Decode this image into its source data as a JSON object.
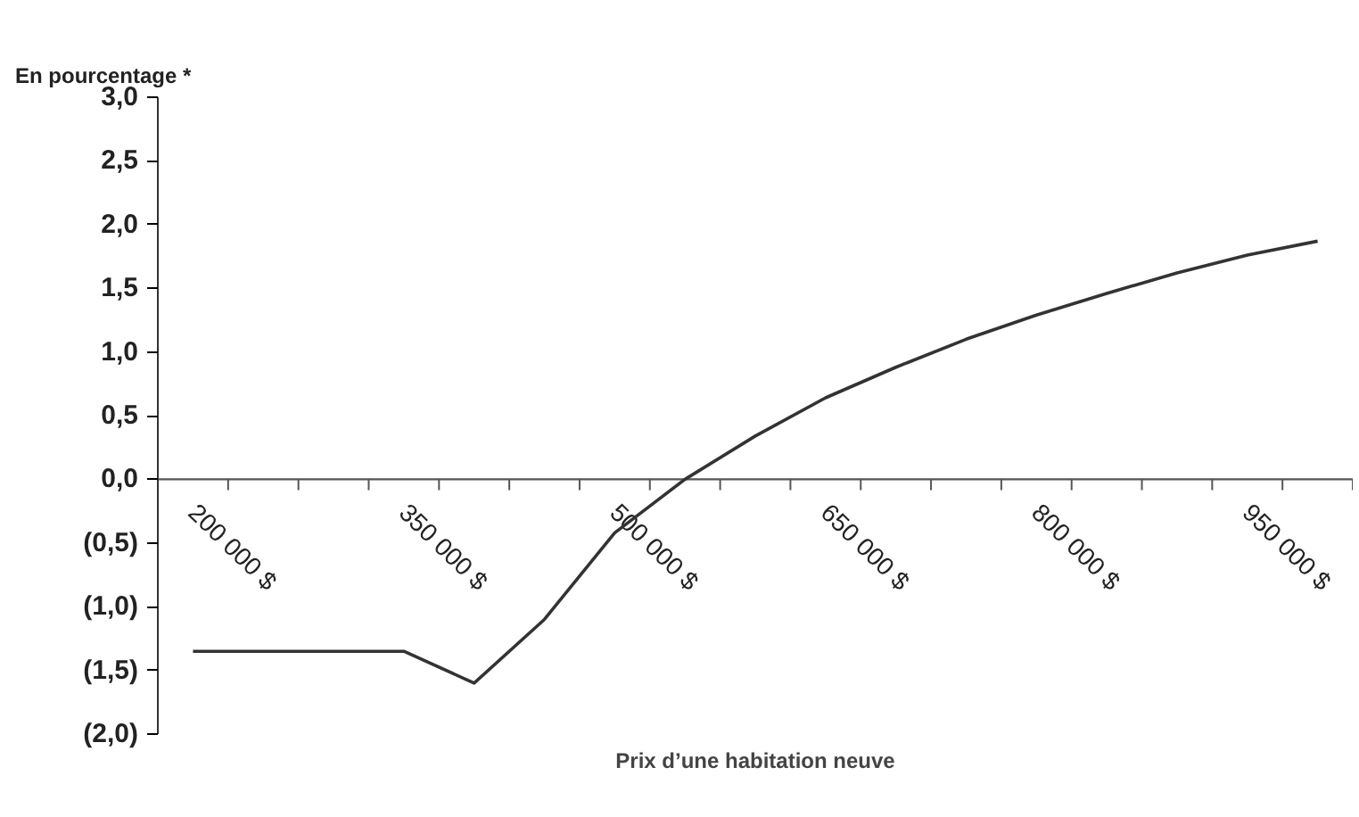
{
  "chart_data": {
    "type": "line",
    "title": "En pourcentage *",
    "xlabel": "Prix d’une habitation neuve",
    "categories": [
      "200 000 $",
      null,
      null,
      "350 000 $",
      null,
      null,
      "500 000 $",
      null,
      null,
      "650 000 $",
      null,
      null,
      "800 000 $",
      null,
      null,
      "950 000 $",
      null
    ],
    "values": [
      -1.35,
      -1.35,
      -1.35,
      -1.35,
      -1.6,
      -1.1,
      -0.42,
      0.0,
      0.34,
      0.64,
      0.88,
      1.1,
      1.29,
      1.46,
      1.62,
      1.76,
      1.87
    ],
    "color": "#333333",
    "ylim": [
      -2.0,
      3.0
    ],
    "yticks": [
      {
        "value": -2.0,
        "label": "(2,0)"
      },
      {
        "value": -1.5,
        "label": "(1,5)"
      },
      {
        "value": -1.0,
        "label": "(1,0)"
      },
      {
        "value": -0.5,
        "label": "(0,5)"
      },
      {
        "value": 0.0,
        "label": "0,0"
      },
      {
        "value": 0.5,
        "label": "0,5"
      },
      {
        "value": 1.0,
        "label": "1,0"
      },
      {
        "value": 1.5,
        "label": "1,5"
      },
      {
        "value": 2.0,
        "label": "2,0"
      },
      {
        "value": 2.5,
        "label": "2,5"
      },
      {
        "value": 3.0,
        "label": "3,0"
      }
    ]
  }
}
